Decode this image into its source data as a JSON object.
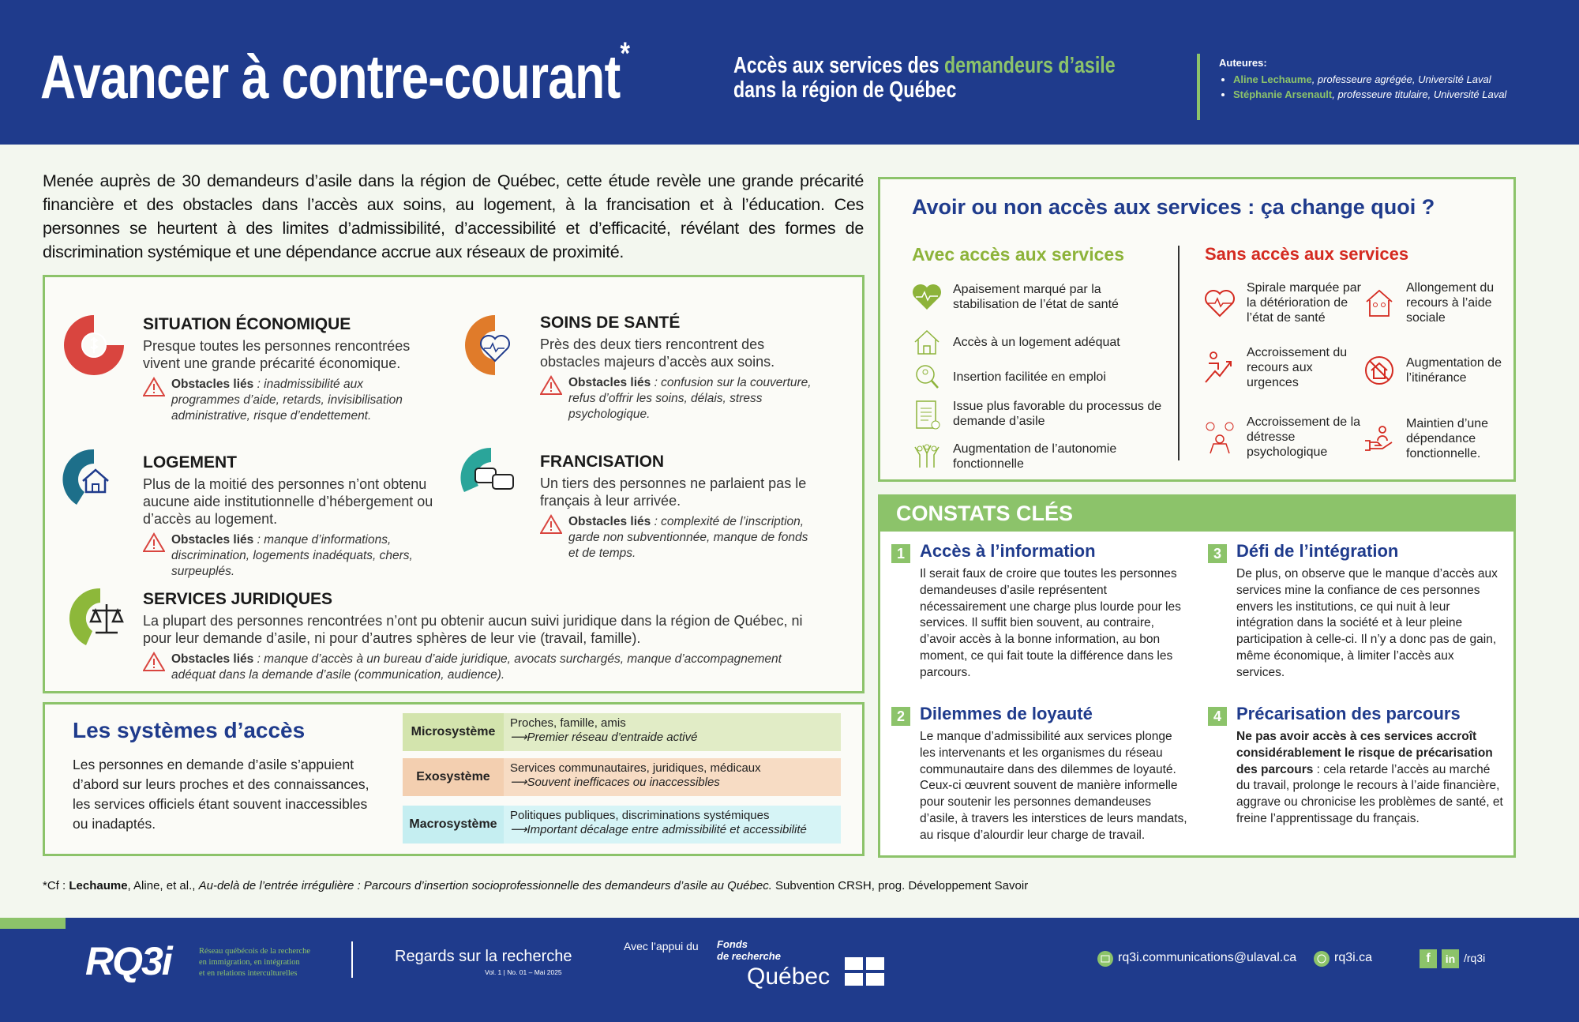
{
  "header": {
    "title": "Avancer à contre-courant",
    "title_mark": "*",
    "subtitle_pre": "Accès aux services des ",
    "subtitle_hl": "demandeurs d’asile",
    "subtitle_post": "dans la région de Québec",
    "authors_label": "Auteures:",
    "authors": [
      {
        "name": "Aline Lechaume",
        "role": ", professeure agrégée, Université Laval"
      },
      {
        "name": "Stéphanie Arsenault",
        "role": ", professeure titulaire, Université Laval"
      }
    ]
  },
  "intro": "Menée auprès de 30 demandeurs d’asile dans la région de Québec, cette étude revèle une grande précarité financière et des obstacles dans l’accès aux soins, au logement, à la francisation et à l’éducation. Ces personnes se heurtent à des limites d’admissibilité, d’accessibilité et d’efficacité, révélant des formes de discrimination systémique et une dépendance accrue aux réseaux de proximité.",
  "obstacles_label": "Obstacles liés",
  "sections": [
    {
      "title": "SITUATION ÉCONOMIQUE",
      "text": "Presque toutes les personnes rencontrées vivent une grande précarité économique.",
      "obstacles": " : inadmissibilité aux programmes d’aide, retards, invisibilisation administrative, risque d’endettement.",
      "color": "#d9453f"
    },
    {
      "title": "SOINS DE SANTÉ",
      "text": "Près des deux tiers rencontrent des obstacles majeurs d’accès aux soins.",
      "obstacles": " : confusion sur la couverture, refus d’offrir les soins, délais, stress psychologique.",
      "color": "#e07b2a"
    },
    {
      "title": "LOGEMENT",
      "text": "Plus de la moitié des personnes n’ont obtenu aucune aide institutionnelle d’hébergement ou d’accès au logement.",
      "obstacles": " :  manque d’informations, discrimination, logements inadéquats, chers, surpeuplés.",
      "color": "#1d6f8a"
    },
    {
      "title": "FRANCISATION",
      "text": "Un tiers des personnes ne parlaient pas le français à leur arrivée.",
      "obstacles": " : complexité de l’inscription, garde non subventionnée, manque de fonds et de temps.",
      "color": "#2aa59a"
    },
    {
      "title": "SERVICES JURIDIQUES",
      "text": "La plupart des personnes rencontrées n’ont pu obtenir aucun suivi juridique dans la région de Québec, ni pour leur demande d’asile, ni pour d’autres sphères de leur vie (travail, famille).",
      "obstacles": " : manque d’accès à un bureau d’aide juridique, avocats surchargés, manque d’accompagnement adéquat dans la demande d’asile (communication, audience).",
      "color": "#8db83a"
    }
  ],
  "access": {
    "title": "Avoir ou non accès aux services : ça change quoi ?",
    "with_title": "Avec accès aux services",
    "without_title": "Sans accès aux services",
    "with": [
      "Apaisement marqué par la stabilisation de l’état de santé",
      "Accès à un logement adéquat",
      "Insertion facilitée en emploi",
      "Issue plus favorable du processus de demande d’asile",
      "Augmentation de l’autonomie fonctionnelle"
    ],
    "without": [
      "Spirale marquée par la détérioration de l’état de santé",
      "Allongement du recours à l’aide sociale",
      "Accroissement du recours aux urgences",
      "Augmentation de l’itinérance",
      "Accroissement de la détresse psychologique",
      "Maintien d’une dépendance fonctionnelle."
    ],
    "with_color": "#8db33a",
    "without_color": "#d42a20"
  },
  "constats": {
    "title": "CONSTATS CLÉS",
    "items": [
      {
        "num": "1",
        "title": "Accès à l’information",
        "text": "Il serait faux de croire que toutes les personnes demandeuses d’asile représentent nécessairement une charge plus lourde pour les services. Il suffit bien souvent, au contraire, d’avoir accès à la bonne information, au bon moment, ce qui fait toute la différence dans les parcours."
      },
      {
        "num": "2",
        "title": "Dilemmes de loyauté",
        "text": "Le manque d’admissibilité aux services plonge les intervenants et les organismes du réseau communautaire dans des dilemmes de loyauté. Ceux-ci œuvrent souvent de manière informelle pour soutenir les personnes demandeuses d’asile, à travers les interstices de leurs mandats, au risque d’alourdir leur charge de travail."
      },
      {
        "num": "3",
        "title": "Défi de l’intégration",
        "text": "De plus, on observe que le manque d’accès aux services mine la confiance de ces personnes envers les institutions, ce qui nuit à leur intégration dans la société et à leur pleine participation à celle-ci. Il n’y a donc pas de gain, même économique, à limiter l’accès aux services."
      },
      {
        "num": "4",
        "title": "Précarisation des parcours",
        "bold": "Ne pas avoir accès à ces services accroît considérablement le risque de précarisation des parcours",
        "text": " : cela retarde l’accès au marché du travail, prolonge le recours à l’aide financière, aggrave ou chronicise les problèmes de santé, et freine l’apprentissage du français."
      }
    ]
  },
  "systems": {
    "title": "Les systèmes d’accès",
    "text": "Les personnes en demande d’asile s’appuient d’abord sur leurs proches et des connaissances, les services officiels étant souvent inaccessibles ou inadaptés.",
    "rows": [
      {
        "label": "Microsystème",
        "line1": "Proches, famille, amis",
        "line2": "⟶Premier réseau d’entraide activé",
        "bg": "#e1ecc6",
        "lbg": "#d3e4ad"
      },
      {
        "label": "Exosystème",
        "line1": "Services communautaires, juridiques, médicaux",
        "line2": "⟶Souvent inefficaces ou inaccessibles",
        "bg": "#f7dcc4",
        "lbg": "#f3cfb0"
      },
      {
        "label": "Macrosystème",
        "line1": "Politiques publiques, discriminations systémiques",
        "line2": "⟶Important décalage entre admissibilité et accessibilité",
        "bg": "#d6f4f6",
        "lbg": "#c5eef1"
      }
    ]
  },
  "footnote": {
    "pre": "*Cf : ",
    "author": "Lechaume",
    "mid": ", Aline, et al., ",
    "title": "Au-delà de l’entrée irrégulière : Parcours d’insertion socioprofessionnelle des demandeurs d’asile au Québec.",
    "post": " Subvention CRSH, prog. Développement Savoir"
  },
  "footer": {
    "logo": "RQ3i",
    "logo_tagline": [
      "Réseau québécois de la recherche",
      "en immigration, en intégration",
      "et en relations interculturelles"
    ],
    "series": "Regards sur la recherche",
    "series_issue": "Vol. 1 | No. 01 – Mai 2025",
    "support": "Avec l’appui du",
    "frq": [
      "Fonds",
      "de recherche",
      "Québec"
    ],
    "email": "rq3i.communications@ulaval.ca",
    "website": "rq3i.ca",
    "social": "/rq3i",
    "fb": "f",
    "li": "in"
  }
}
